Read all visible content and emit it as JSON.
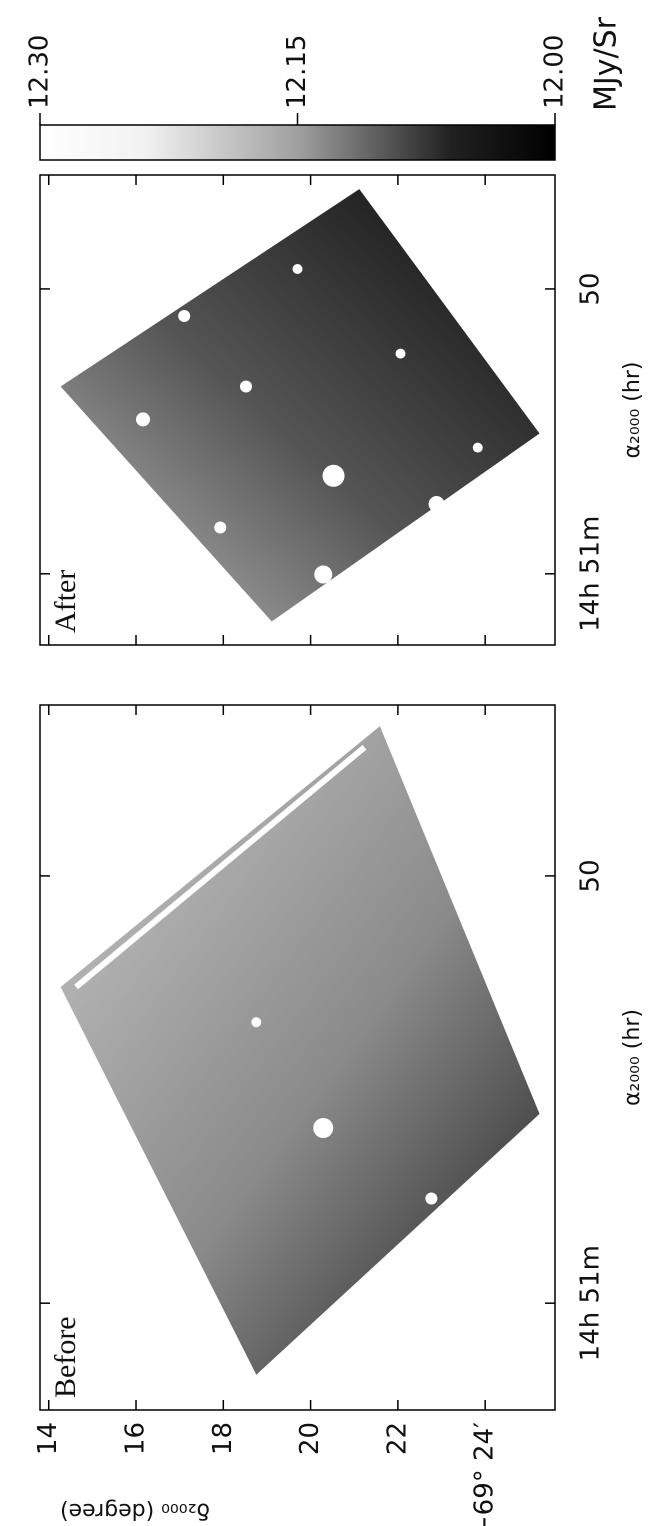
{
  "chart_data": [
    {
      "type": "image",
      "label": "Before",
      "xlabel": "α₂₀₀₀ (hr)",
      "ylabel": "δ₂₀₀₀ (degree)",
      "xlim": [
        51.25,
        49.6
      ],
      "xticks": [
        {
          "value": 51,
          "label": "14h 51m"
        },
        50
      ],
      "ylim": [
        13.8,
        25.6
      ],
      "yticks": [
        14,
        16,
        18,
        20,
        22,
        {
          "value": 24,
          "label": "−69° 24′"
        }
      ]
    },
    {
      "type": "image",
      "label": "After",
      "xlabel": "α₂₀₀₀ (hr)",
      "xlim": [
        51.25,
        49.6
      ],
      "xticks": [
        {
          "value": 51,
          "label": "14h 51m"
        },
        50
      ],
      "ylim": [
        13.8,
        25.6
      ],
      "yticks": [
        14,
        16,
        18,
        20,
        22,
        24
      ]
    },
    {
      "type": "colorbar",
      "label": "MJy/Sr",
      "clim": [
        12,
        12.3
      ],
      "cticks": [
        {
          "value": 12.3,
          "label": "12.30"
        },
        12.15,
        {
          "value": 12,
          "label": "12.00"
        }
      ]
    }
  ]
}
